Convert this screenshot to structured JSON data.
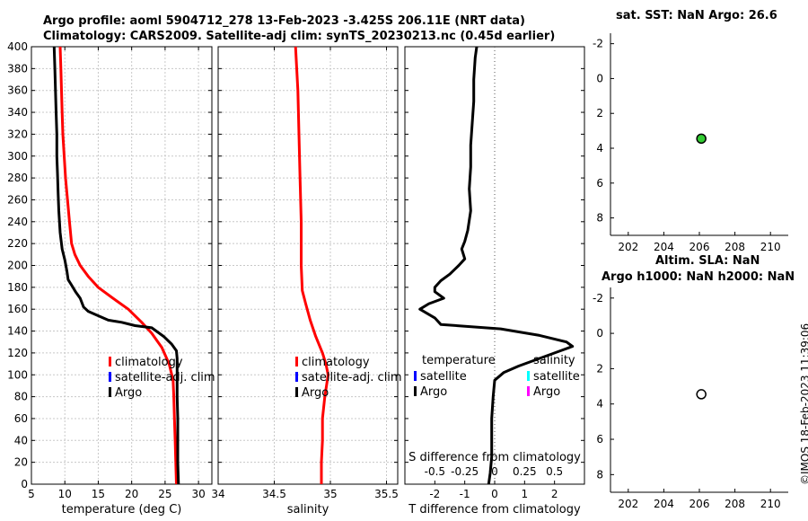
{
  "header": {
    "title_line1": "Argo profile: aoml 5904712_278 13-Feb-2023 -3.425S 206.11E (NRT data)",
    "title_line2": "Climatology: CARS2009. Satellite-adj clim: synTS_20230213.nc (0.45d earlier)"
  },
  "sst_panel": {
    "title": "sat. SST: NaN Argo: 26.6"
  },
  "sla_panel": {
    "title_line1": "Altim. SLA: NaN",
    "title_line2": "Argo h1000: NaN h2000: NaN"
  },
  "stamp": "©IMOS 18-Feb-2023 11:39:06",
  "colors": {
    "climatology": "#ff0000",
    "satellite": "#0000ff",
    "argo": "#000000",
    "sal_satellite": "#00ffff",
    "sal_argo": "#ff00ff",
    "grid": "#c8c8c8",
    "sst_marker": "#33cc33"
  },
  "chart_data": [
    {
      "id": "temperature",
      "type": "line",
      "xlabel": "temperature (deg C)",
      "ylabel": "",
      "xlim": [
        5,
        32
      ],
      "ylim": [
        400,
        0
      ],
      "xticks": [
        5,
        10,
        15,
        20,
        25,
        30
      ],
      "yticks": [
        0,
        20,
        40,
        60,
        80,
        100,
        120,
        140,
        160,
        180,
        200,
        220,
        240,
        260,
        280,
        300,
        320,
        340,
        360,
        380,
        400
      ],
      "grid": true,
      "legend": {
        "position": "right",
        "entries": [
          "climatology",
          "satellite-adj. clim",
          "Argo"
        ]
      },
      "series": [
        {
          "name": "climatology",
          "color": "#ff0000",
          "points": [
            [
              26.7,
              0
            ],
            [
              26.6,
              20
            ],
            [
              26.5,
              40
            ],
            [
              26.4,
              60
            ],
            [
              26.3,
              80
            ],
            [
              26.2,
              95
            ],
            [
              25.6,
              110
            ],
            [
              24.5,
              125
            ],
            [
              23.0,
              138
            ],
            [
              21.5,
              148
            ],
            [
              19.5,
              160
            ],
            [
              17.2,
              170
            ],
            [
              15.0,
              180
            ],
            [
              13.5,
              190
            ],
            [
              12.3,
              200
            ],
            [
              11.5,
              210
            ],
            [
              11.0,
              220
            ],
            [
              10.7,
              240
            ],
            [
              10.4,
              260
            ],
            [
              10.1,
              280
            ],
            [
              9.9,
              300
            ],
            [
              9.7,
              320
            ],
            [
              9.6,
              340
            ],
            [
              9.5,
              360
            ],
            [
              9.4,
              380
            ],
            [
              9.3,
              400
            ]
          ]
        },
        {
          "name": "Argo",
          "color": "#000000",
          "points": [
            [
              27.0,
              0
            ],
            [
              26.9,
              20
            ],
            [
              26.9,
              40
            ],
            [
              26.9,
              60
            ],
            [
              26.8,
              80
            ],
            [
              26.8,
              100
            ],
            [
              26.8,
              115
            ],
            [
              26.7,
              122
            ],
            [
              26.0,
              128
            ],
            [
              24.8,
              135
            ],
            [
              23.0,
              143
            ],
            [
              20.5,
              145
            ],
            [
              18.5,
              148
            ],
            [
              16.5,
              150
            ],
            [
              14.6,
              155
            ],
            [
              13.5,
              158
            ],
            [
              12.8,
              162
            ],
            [
              12.3,
              170
            ],
            [
              11.6,
              176
            ],
            [
              11.0,
              182
            ],
            [
              10.5,
              187
            ],
            [
              10.3,
              195
            ],
            [
              10.0,
              205
            ],
            [
              9.6,
              215
            ],
            [
              9.3,
              230
            ],
            [
              9.1,
              250
            ],
            [
              9.0,
              265
            ],
            [
              8.9,
              285
            ],
            [
              8.8,
              300
            ],
            [
              8.8,
              320
            ],
            [
              8.7,
              340
            ],
            [
              8.6,
              360
            ],
            [
              8.5,
              380
            ],
            [
              8.4,
              400
            ]
          ]
        }
      ]
    },
    {
      "id": "salinity",
      "type": "line",
      "xlabel": "salinity",
      "ylabel": "",
      "xlim": [
        34.0,
        35.6
      ],
      "ylim": [
        400,
        0
      ],
      "xticks": [
        34,
        34.5,
        35,
        35.5
      ],
      "yticks": [
        0,
        20,
        40,
        60,
        80,
        100,
        120,
        140,
        160,
        180,
        200,
        220,
        240,
        260,
        280,
        300,
        320,
        340,
        360,
        380,
        400
      ],
      "grid": true,
      "legend": {
        "position": "right",
        "entries": [
          "climatology",
          "satellite-adj. clim",
          "Argo"
        ]
      },
      "series": [
        {
          "name": "climatology",
          "color": "#ff0000",
          "points": [
            [
              34.92,
              0
            ],
            [
              34.92,
              20
            ],
            [
              34.93,
              40
            ],
            [
              34.93,
              60
            ],
            [
              34.95,
              80
            ],
            [
              34.98,
              100
            ],
            [
              34.96,
              110
            ],
            [
              34.93,
              120
            ],
            [
              34.87,
              135
            ],
            [
              34.82,
              150
            ],
            [
              34.78,
              165
            ],
            [
              34.75,
              177
            ],
            [
              34.74,
              200
            ],
            [
              34.74,
              240
            ],
            [
              34.73,
              280
            ],
            [
              34.72,
              320
            ],
            [
              34.71,
              360
            ],
            [
              34.7,
              380
            ],
            [
              34.69,
              400
            ]
          ]
        }
      ]
    },
    {
      "id": "difference",
      "type": "line",
      "xlabel": "T difference from climatology",
      "x2label": "S difference from climatology",
      "ylabel": "",
      "xlim": [
        -3.0,
        3.0
      ],
      "x2lim": [
        -0.75,
        0.75
      ],
      "ylim": [
        400,
        0
      ],
      "xticks": [
        -2,
        -1,
        0,
        1,
        2
      ],
      "x2ticks": [
        -0.5,
        -0.25,
        0,
        0.25,
        0.5
      ],
      "x2ticklabels": [
        "-0.5",
        "-0.25",
        "0",
        "0.25",
        "0.5"
      ],
      "yticks": [
        0,
        20,
        40,
        60,
        80,
        100,
        120,
        140,
        160,
        180,
        200,
        220,
        240,
        260,
        280,
        300,
        320,
        340,
        360,
        380,
        400
      ],
      "grid": false,
      "legend_temperature": {
        "heading": "temperature",
        "entries": [
          "satellite",
          "Argo"
        ]
      },
      "legend_salinity": {
        "heading": "salinity",
        "entries": [
          "satellite",
          "Argo"
        ]
      },
      "series": [
        {
          "name": "Argo T diff",
          "color": "#000000",
          "points": [
            [
              -0.2,
              0
            ],
            [
              -0.15,
              10
            ],
            [
              -0.1,
              25
            ],
            [
              -0.1,
              40
            ],
            [
              -0.1,
              60
            ],
            [
              -0.05,
              80
            ],
            [
              0.0,
              95
            ],
            [
              0.3,
              102
            ],
            [
              0.8,
              108
            ],
            [
              1.5,
              115
            ],
            [
              2.2,
              122
            ],
            [
              2.6,
              126
            ],
            [
              2.4,
              130
            ],
            [
              1.5,
              136
            ],
            [
              0.2,
              142
            ],
            [
              -1.8,
              146
            ],
            [
              -2.0,
              152
            ],
            [
              -2.5,
              160
            ],
            [
              -2.2,
              165
            ],
            [
              -1.7,
              170
            ],
            [
              -2.0,
              176
            ],
            [
              -2.0,
              180
            ],
            [
              -1.8,
              186
            ],
            [
              -1.5,
              192
            ],
            [
              -1.2,
              200
            ],
            [
              -1.0,
              206
            ],
            [
              -1.1,
              215
            ],
            [
              -1.0,
              222
            ],
            [
              -0.9,
              232
            ],
            [
              -0.8,
              250
            ],
            [
              -0.85,
              270
            ],
            [
              -0.8,
              290
            ],
            [
              -0.8,
              310
            ],
            [
              -0.75,
              330
            ],
            [
              -0.7,
              350
            ],
            [
              -0.7,
              370
            ],
            [
              -0.65,
              390
            ],
            [
              -0.6,
              400
            ]
          ]
        }
      ]
    },
    {
      "id": "sst",
      "type": "scatter",
      "title": "sat. SST: NaN Argo: 26.6",
      "xlim": [
        201,
        211
      ],
      "ylim": [
        -2.6,
        9
      ],
      "xticks": [
        202,
        204,
        206,
        208,
        210
      ],
      "yticks": [
        -2,
        0,
        2,
        4,
        6,
        8
      ],
      "points": [
        {
          "x": 206.11,
          "y": 3.45,
          "filled": true,
          "color": "#33cc33"
        }
      ]
    },
    {
      "id": "sla",
      "type": "scatter",
      "title": "Altim. SLA: NaN / Argo h1000: NaN h2000: NaN",
      "xlim": [
        201,
        211
      ],
      "ylim": [
        -2.6,
        9
      ],
      "xticks": [
        202,
        204,
        206,
        208,
        210
      ],
      "yticks": [
        -2,
        0,
        2,
        4,
        6,
        8
      ],
      "points": [
        {
          "x": 206.11,
          "y": 3.45,
          "filled": false,
          "color": "#ffffff"
        }
      ]
    }
  ]
}
